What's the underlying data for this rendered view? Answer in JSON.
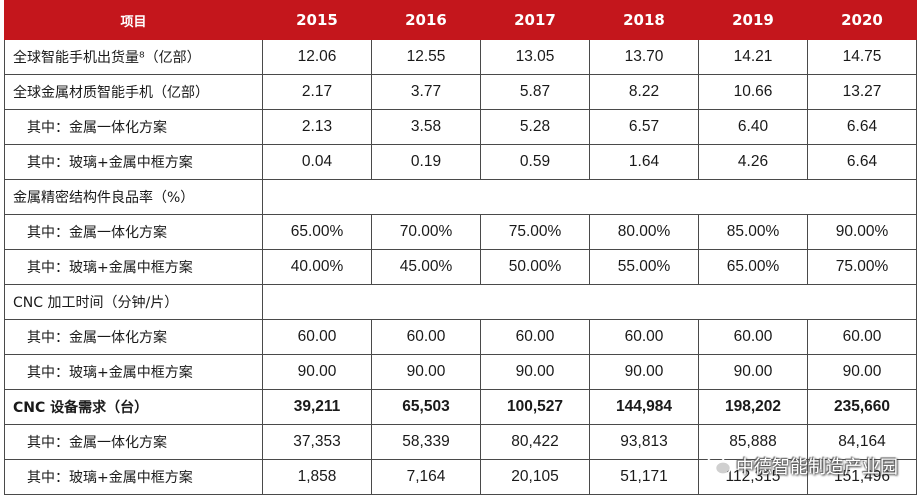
{
  "table": {
    "header": [
      "项目",
      "2015",
      "2016",
      "2017",
      "2018",
      "2019",
      "2020"
    ],
    "rows": [
      {
        "label": "全球智能手机出货量⁸（亿部）",
        "values": [
          "12.06",
          "12.55",
          "13.05",
          "13.70",
          "14.21",
          "14.75"
        ]
      },
      {
        "label": "全球金属材质智能手机（亿部）",
        "values": [
          "2.17",
          "3.77",
          "5.87",
          "8.22",
          "10.66",
          "13.27"
        ]
      },
      {
        "label": "其中：金属一体化方案",
        "values": [
          "2.13",
          "3.58",
          "5.28",
          "6.57",
          "6.40",
          "6.64"
        ]
      },
      {
        "label": "其中：玻璃+金属中框方案",
        "values": [
          "0.04",
          "0.19",
          "0.59",
          "1.64",
          "4.26",
          "6.64"
        ]
      },
      {
        "label": "金属精密结构件良品率（%）",
        "values": []
      },
      {
        "label": "其中：金属一体化方案",
        "values": [
          "65.00%",
          "70.00%",
          "75.00%",
          "80.00%",
          "85.00%",
          "90.00%"
        ]
      },
      {
        "label": "其中：玻璃+金属中框方案",
        "values": [
          "40.00%",
          "45.00%",
          "50.00%",
          "55.00%",
          "65.00%",
          "75.00%"
        ]
      },
      {
        "label": "CNC 加工时间（分钟/片）",
        "values": []
      },
      {
        "label": "其中：金属一体化方案",
        "values": [
          "60.00",
          "60.00",
          "60.00",
          "60.00",
          "60.00",
          "60.00"
        ]
      },
      {
        "label": "其中：玻璃+金属中框方案",
        "values": [
          "90.00",
          "90.00",
          "90.00",
          "90.00",
          "90.00",
          "90.00"
        ]
      },
      {
        "label": "CNC 设备需求（台）",
        "values": [
          "39,211",
          "65,503",
          "100,527",
          "144,984",
          "198,202",
          "235,660"
        ]
      },
      {
        "label": "其中：金属一体化方案",
        "values": [
          "37,353",
          "58,339",
          "80,422",
          "93,813",
          "85,888",
          "84,164"
        ]
      },
      {
        "label": "其中：玻璃+金属中框方案",
        "values": [
          "1,858",
          "7,164",
          "20,105",
          "51,171",
          "112,315",
          "151,496"
        ]
      }
    ]
  },
  "watermark": {
    "text": "中德智能制造产业园",
    "icon": "wechat-icon"
  }
}
